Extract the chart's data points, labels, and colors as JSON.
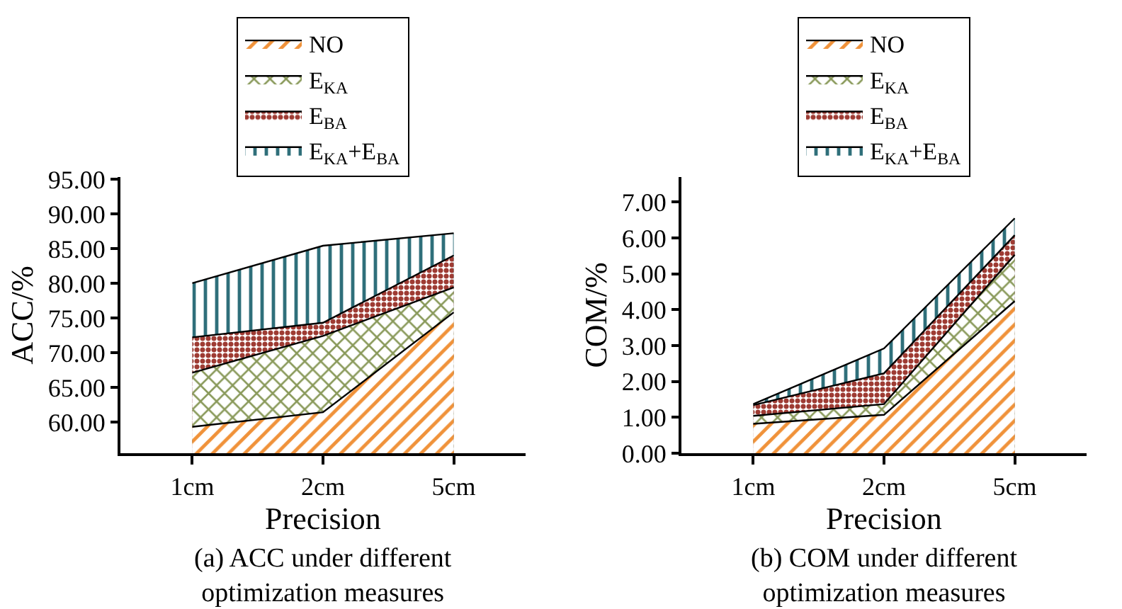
{
  "chart_data": [
    {
      "type": "area",
      "xlabel": "Precision",
      "ylabel": "ACC/%",
      "annotations": [
        "(a) ACC under different\noptimization measures"
      ],
      "categories": [
        "1cm",
        "2cm",
        "5cm"
      ],
      "ylim": [
        55.5,
        95.3
      ],
      "yticks": [
        {
          "value": 60,
          "label": "60.00"
        },
        {
          "value": 65,
          "label": "65.00"
        },
        {
          "value": 70,
          "label": "70.00"
        },
        {
          "value": 75,
          "label": "75.00"
        },
        {
          "value": 80,
          "label": "80.00"
        },
        {
          "value": 85,
          "label": "85.00"
        },
        {
          "value": 90,
          "label": "90.00"
        },
        {
          "value": 95,
          "label": "95.00"
        }
      ],
      "legend": "top",
      "grid": false,
      "series": [
        {
          "name": "NO",
          "color": "#f0923a",
          "values": [
            59.3,
            61.4,
            75.8
          ]
        },
        {
          "name": "E$_{KA}$",
          "color": "#8a9a5b",
          "values": [
            67.1,
            72.4,
            79.4
          ]
        },
        {
          "name": "E$_{BA}$",
          "color": "#9e3b33",
          "values": [
            72.2,
            74.3,
            84.0
          ]
        },
        {
          "name": "E$_{KA}$+E$_{BA}$",
          "color": "#2f6f7a",
          "values": [
            80.0,
            85.4,
            87.2
          ]
        }
      ]
    },
    {
      "type": "area",
      "xlabel": "Precision",
      "ylabel": "COM/%",
      "annotations": [
        "(b) COM under different\noptimization measures"
      ],
      "categories": [
        "1cm",
        "2cm",
        "5cm"
      ],
      "ylim": [
        0,
        7.7
      ],
      "yticks": [
        {
          "value": 0,
          "label": "0.00"
        },
        {
          "value": 1,
          "label": "1.00"
        },
        {
          "value": 2,
          "label": "2.00"
        },
        {
          "value": 3,
          "label": "3.00"
        },
        {
          "value": 4,
          "label": "4.00"
        },
        {
          "value": 5,
          "label": "5.00"
        },
        {
          "value": 6,
          "label": "6.00"
        },
        {
          "value": 7,
          "label": "7.00"
        }
      ],
      "legend": "top",
      "grid": false,
      "series": [
        {
          "name": "NO",
          "color": "#f0923a",
          "values": [
            0.82,
            1.07,
            4.24
          ]
        },
        {
          "name": "E$_{KA}$",
          "color": "#8a9a5b",
          "values": [
            1.04,
            1.37,
            5.53
          ]
        },
        {
          "name": "E$_{BA}$",
          "color": "#9e3b33",
          "values": [
            1.34,
            2.23,
            6.08
          ]
        },
        {
          "name": "E$_{KA}$+E$_{BA}$",
          "color": "#2f6f7a",
          "values": [
            1.37,
            2.92,
            6.55
          ]
        }
      ]
    }
  ]
}
